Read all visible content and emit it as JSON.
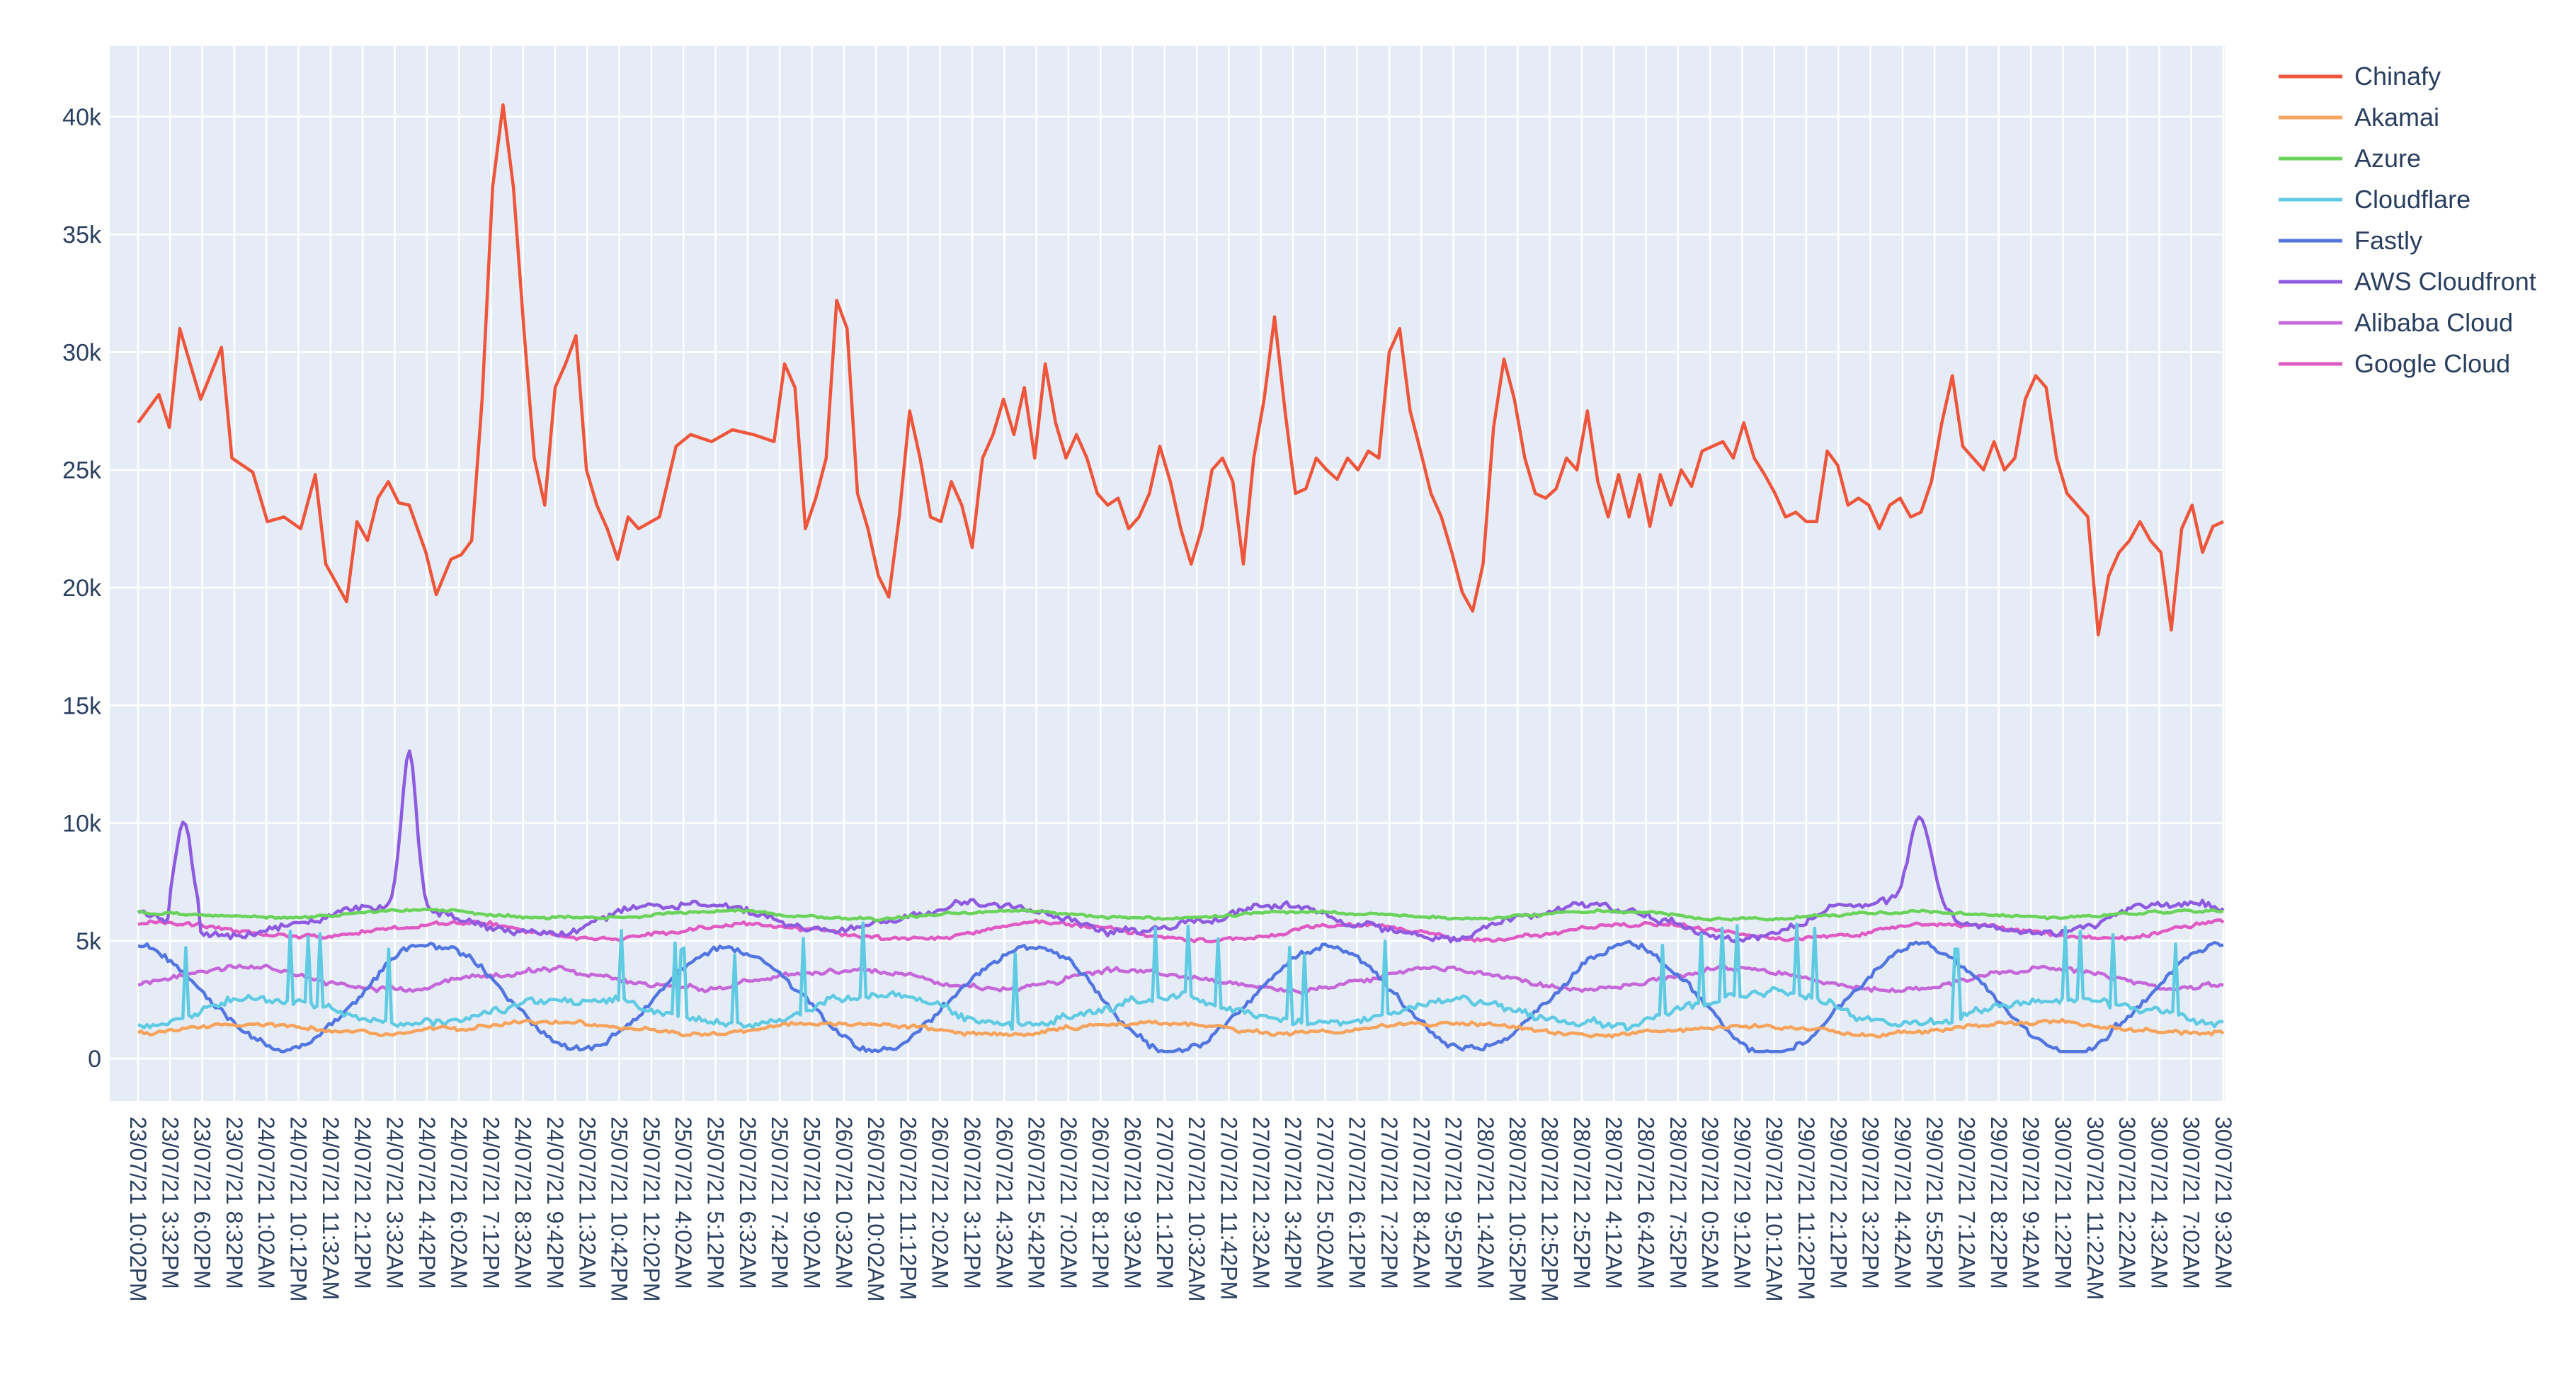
{
  "chart_data": {
    "type": "line",
    "title": "",
    "xlabel": "",
    "ylabel": "",
    "ylim": [
      -1800,
      43000
    ],
    "y_ticks": [
      0,
      5000,
      10000,
      15000,
      20000,
      25000,
      30000,
      35000,
      40000
    ],
    "y_tick_labels": [
      "0",
      "5k",
      "10k",
      "15k",
      "20k",
      "25k",
      "30k",
      "35k",
      "40k"
    ],
    "grid": true,
    "legend_position": "top-right",
    "x_tick_labels": [
      "23/07/21 10:02PM",
      "23/07/21 3:32PM",
      "23/07/21 6:02PM",
      "23/07/21 8:32PM",
      "24/07/21 1:02AM",
      "24/07/21 10:12PM",
      "24/07/21 11:32AM",
      "24/07/21 2:12PM",
      "24/07/21 3:32AM",
      "24/07/21 4:42PM",
      "24/07/21 6:02AM",
      "24/07/21 7:12PM",
      "24/07/21 8:32AM",
      "24/07/21 9:42PM",
      "25/07/21 1:32AM",
      "25/07/21 10:42PM",
      "25/07/21 12:02PM",
      "25/07/21 4:02AM",
      "25/07/21 5:12PM",
      "25/07/21 6:32AM",
      "25/07/21 7:42PM",
      "25/07/21 9:02AM",
      "26/07/21 0:32AM",
      "26/07/21 10:02AM",
      "26/07/21 11:12PM",
      "26/07/21 2:02AM",
      "26/07/21 3:12PM",
      "26/07/21 4:32AM",
      "26/07/21 5:42PM",
      "26/07/21 7:02AM",
      "26/07/21 8:12PM",
      "26/07/21 9:32AM",
      "27/07/21 1:12PM",
      "27/07/21 10:32AM",
      "27/07/21 11:42PM",
      "27/07/21 2:32AM",
      "27/07/21 3:42PM",
      "27/07/21 5:02AM",
      "27/07/21 6:12PM",
      "27/07/21 7:22PM",
      "27/07/21 8:42AM",
      "27/07/21 9:52PM",
      "28/07/21 1:42AM",
      "28/07/21 10:52PM",
      "28/07/21 12:52PM",
      "28/07/21 2:52PM",
      "28/07/21 4:12AM",
      "28/07/21 6:42AM",
      "28/07/21 7:52PM",
      "29/07/21 0:52AM",
      "29/07/21 9:12AM",
      "29/07/21 10:12AM",
      "29/07/21 11:22PM",
      "29/07/21 2:12PM",
      "29/07/21 3:22PM",
      "29/07/21 4:42AM",
      "29/07/21 5:52PM",
      "29/07/21 7:12AM",
      "29/07/21 8:22PM",
      "29/07/21 9:42AM",
      "30/07/21 1:22PM",
      "30/07/21 11:22AM",
      "30/07/21 2:22AM",
      "30/07/21 4:32AM",
      "30/07/21 7:02AM",
      "30/07/21 9:32AM"
    ],
    "series": [
      {
        "name": "Chinafy",
        "color": "#ef553b",
        "base": 26000,
        "jitter": 900,
        "wave": 2200,
        "seed": 3,
        "values": [
          [
            0,
            27000
          ],
          [
            0.01,
            28200
          ],
          [
            0.015,
            26800
          ],
          [
            0.02,
            31000
          ],
          [
            0.03,
            28000
          ],
          [
            0.04,
            30200
          ],
          [
            0.045,
            25500
          ],
          [
            0.055,
            24900
          ],
          [
            0.062,
            22800
          ],
          [
            0.07,
            23000
          ],
          [
            0.078,
            22500
          ],
          [
            0.085,
            24800
          ],
          [
            0.09,
            21000
          ],
          [
            0.095,
            20200
          ],
          [
            0.1,
            19400
          ],
          [
            0.105,
            22800
          ],
          [
            0.11,
            22000
          ],
          [
            0.115,
            23800
          ],
          [
            0.12,
            24500
          ],
          [
            0.125,
            23600
          ],
          [
            0.13,
            23500
          ],
          [
            0.138,
            21500
          ],
          [
            0.143,
            19700
          ],
          [
            0.15,
            21200
          ],
          [
            0.155,
            21400
          ],
          [
            0.16,
            22000
          ],
          [
            0.165,
            28000
          ],
          [
            0.17,
            37000
          ],
          [
            0.175,
            40500
          ],
          [
            0.18,
            37000
          ],
          [
            0.185,
            31000
          ],
          [
            0.19,
            25500
          ],
          [
            0.195,
            23500
          ],
          [
            0.2,
            28500
          ],
          [
            0.205,
            29500
          ],
          [
            0.21,
            30700
          ],
          [
            0.215,
            25000
          ],
          [
            0.22,
            23500
          ],
          [
            0.225,
            22500
          ],
          [
            0.23,
            21200
          ],
          [
            0.235,
            23000
          ],
          [
            0.24,
            22500
          ],
          [
            0.25,
            23000
          ],
          [
            0.258,
            26000
          ],
          [
            0.265,
            26500
          ],
          [
            0.275,
            26200
          ],
          [
            0.285,
            26700
          ],
          [
            0.295,
            26500
          ],
          [
            0.305,
            26200
          ],
          [
            0.31,
            29500
          ],
          [
            0.315,
            28500
          ],
          [
            0.32,
            22500
          ],
          [
            0.325,
            23800
          ],
          [
            0.33,
            25500
          ],
          [
            0.335,
            32200
          ],
          [
            0.34,
            31000
          ],
          [
            0.345,
            24000
          ],
          [
            0.35,
            22500
          ],
          [
            0.355,
            20500
          ],
          [
            0.36,
            19600
          ],
          [
            0.365,
            23000
          ],
          [
            0.37,
            27500
          ],
          [
            0.375,
            25500
          ],
          [
            0.38,
            23000
          ],
          [
            0.385,
            22800
          ],
          [
            0.39,
            24500
          ],
          [
            0.395,
            23500
          ],
          [
            0.4,
            21700
          ],
          [
            0.405,
            25500
          ],
          [
            0.41,
            26500
          ],
          [
            0.415,
            28000
          ],
          [
            0.42,
            26500
          ],
          [
            0.425,
            28500
          ],
          [
            0.43,
            25500
          ],
          [
            0.435,
            29500
          ],
          [
            0.44,
            27000
          ],
          [
            0.445,
            25500
          ],
          [
            0.45,
            26500
          ],
          [
            0.455,
            25500
          ],
          [
            0.46,
            24000
          ],
          [
            0.465,
            23500
          ],
          [
            0.47,
            23800
          ],
          [
            0.475,
            22500
          ],
          [
            0.48,
            23000
          ],
          [
            0.485,
            24000
          ],
          [
            0.49,
            26000
          ],
          [
            0.495,
            24500
          ],
          [
            0.5,
            22500
          ],
          [
            0.505,
            21000
          ],
          [
            0.51,
            22500
          ],
          [
            0.515,
            25000
          ],
          [
            0.52,
            25500
          ],
          [
            0.525,
            24500
          ],
          [
            0.53,
            21000
          ],
          [
            0.535,
            25500
          ],
          [
            0.54,
            28000
          ],
          [
            0.545,
            31500
          ],
          [
            0.55,
            27500
          ],
          [
            0.555,
            24000
          ],
          [
            0.56,
            24200
          ],
          [
            0.565,
            25500
          ],
          [
            0.57,
            25000
          ],
          [
            0.575,
            24600
          ],
          [
            0.58,
            25500
          ],
          [
            0.585,
            25000
          ],
          [
            0.59,
            25800
          ],
          [
            0.595,
            25500
          ],
          [
            0.6,
            30000
          ],
          [
            0.605,
            31000
          ],
          [
            0.61,
            27500
          ],
          [
            0.615,
            25800
          ],
          [
            0.62,
            24000
          ],
          [
            0.625,
            23000
          ],
          [
            0.63,
            21500
          ],
          [
            0.635,
            19800
          ],
          [
            0.64,
            19000
          ],
          [
            0.645,
            21000
          ],
          [
            0.65,
            26800
          ],
          [
            0.655,
            29700
          ],
          [
            0.66,
            28000
          ],
          [
            0.665,
            25500
          ],
          [
            0.67,
            24000
          ],
          [
            0.675,
            23800
          ],
          [
            0.68,
            24200
          ],
          [
            0.685,
            25500
          ],
          [
            0.69,
            25000
          ],
          [
            0.695,
            27500
          ],
          [
            0.7,
            24500
          ],
          [
            0.705,
            23000
          ],
          [
            0.71,
            24800
          ],
          [
            0.715,
            23000
          ],
          [
            0.72,
            24800
          ],
          [
            0.725,
            22600
          ],
          [
            0.73,
            24800
          ],
          [
            0.735,
            23500
          ],
          [
            0.74,
            25000
          ],
          [
            0.745,
            24300
          ],
          [
            0.75,
            25800
          ],
          [
            0.755,
            26000
          ],
          [
            0.76,
            26200
          ],
          [
            0.765,
            25500
          ],
          [
            0.77,
            27000
          ],
          [
            0.775,
            25500
          ],
          [
            0.78,
            24800
          ],
          [
            0.785,
            24000
          ],
          [
            0.79,
            23000
          ],
          [
            0.795,
            23200
          ],
          [
            0.8,
            22800
          ],
          [
            0.805,
            22800
          ],
          [
            0.81,
            25800
          ],
          [
            0.815,
            25200
          ],
          [
            0.82,
            23500
          ],
          [
            0.825,
            23800
          ],
          [
            0.83,
            23500
          ],
          [
            0.835,
            22500
          ],
          [
            0.84,
            23500
          ],
          [
            0.845,
            23800
          ],
          [
            0.85,
            23000
          ],
          [
            0.855,
            23200
          ],
          [
            0.86,
            24500
          ],
          [
            0.865,
            27000
          ],
          [
            0.87,
            29000
          ],
          [
            0.875,
            26000
          ],
          [
            0.88,
            25500
          ],
          [
            0.885,
            25000
          ],
          [
            0.89,
            26200
          ],
          [
            0.895,
            25000
          ],
          [
            0.9,
            25500
          ],
          [
            0.905,
            28000
          ],
          [
            0.91,
            29000
          ],
          [
            0.915,
            28500
          ],
          [
            0.92,
            25500
          ],
          [
            0.925,
            24000
          ],
          [
            0.93,
            23500
          ],
          [
            0.935,
            23000
          ],
          [
            0.94,
            18000
          ],
          [
            0.945,
            20500
          ],
          [
            0.95,
            21500
          ],
          [
            0.955,
            22000
          ],
          [
            0.96,
            22800
          ],
          [
            0.965,
            22000
          ],
          [
            0.97,
            21500
          ],
          [
            0.975,
            18200
          ],
          [
            0.98,
            22500
          ],
          [
            0.985,
            23500
          ],
          [
            0.99,
            21500
          ],
          [
            0.995,
            22600
          ],
          [
            1.0,
            22800
          ]
        ]
      },
      {
        "name": "Akamai",
        "color": "#f7a35c",
        "base": 1300,
        "jitter": 250,
        "wave": 200,
        "seed": 11
      },
      {
        "name": "Azure",
        "color": "#6ad35a",
        "base": 6100,
        "jitter": 160,
        "wave": 150,
        "seed": 17
      },
      {
        "name": "Cloudflare",
        "color": "#5fcbe3",
        "base": 2000,
        "jitter": 500,
        "wave": 600,
        "seed": 23
      },
      {
        "name": "Fastly",
        "color": "#5275e0",
        "base": 2600,
        "jitter": 400,
        "wave": 2200,
        "seed": 29
      },
      {
        "name": "AWS Cloudfront",
        "color": "#8e5be0",
        "base": 5900,
        "jitter": 450,
        "wave": 600,
        "seed": 31
      },
      {
        "name": "Alibaba Cloud",
        "color": "#c567d9",
        "base": 3400,
        "jitter": 300,
        "wave": 400,
        "seed": 37
      },
      {
        "name": "Google Cloud",
        "color": "#e05ac4",
        "base": 5400,
        "jitter": 250,
        "wave": 350,
        "seed": 41
      }
    ]
  }
}
